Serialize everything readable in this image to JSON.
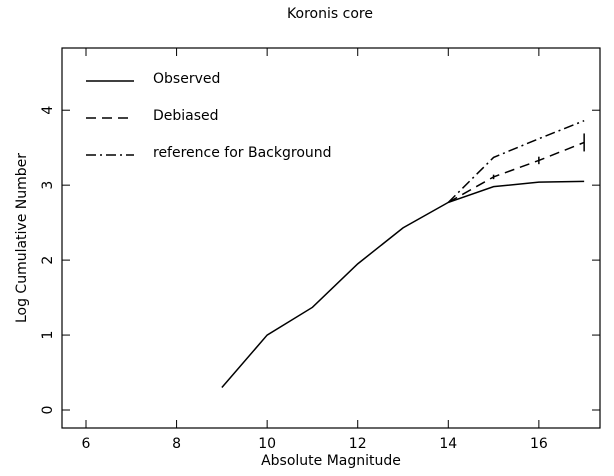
{
  "chart_data": {
    "type": "line",
    "title": "Koronis core",
    "x_label": "Absolute Magnitude",
    "y_label": "Log Cumulative Number",
    "xlim": [
      5.47,
      17.35
    ],
    "ylim": [
      -0.24,
      4.83
    ],
    "xticks": [
      6,
      8,
      10,
      12,
      14,
      16
    ],
    "yticks": [
      0,
      1,
      2,
      3,
      4
    ],
    "legend": "upper left",
    "series": [
      {
        "name": "Observed",
        "color": "#000000",
        "dash": "solid",
        "x": [
          9,
          10,
          11,
          12,
          13,
          14,
          15,
          16,
          17
        ],
        "values": [
          0.3,
          1.0,
          1.37,
          1.95,
          2.43,
          2.77,
          2.98,
          3.04,
          3.05
        ]
      },
      {
        "name": "Debiased",
        "color": "#000000",
        "dash": "dashed",
        "x": [
          14,
          15,
          16,
          17
        ],
        "values": [
          2.77,
          3.11,
          3.33,
          3.57
        ],
        "errors": [
          0,
          0.03,
          0.05,
          0.12
        ]
      },
      {
        "name": "reference for Background",
        "color": "#000000",
        "dash": "dashdot",
        "x": [
          14,
          15,
          16,
          17
        ],
        "values": [
          2.77,
          3.37,
          3.62,
          3.86
        ]
      }
    ]
  }
}
